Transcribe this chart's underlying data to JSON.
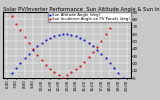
{
  "title": "Solar PV/Inverter Performance  Sun Altitude Angle & Sun Incidence Angle on PV Panels",
  "legend_labels": [
    "Sun Altitude Angle (deg)",
    "Sun Incidence Angle on PV Panels (deg)"
  ],
  "legend_colors": [
    "#0000cc",
    "#cc0000"
  ],
  "bg_color": "#c8c8c8",
  "plot_bg": "#c8c8c8",
  "grid_color": "#ffffff",
  "ylim": [
    0,
    90
  ],
  "yticks": [
    0,
    10,
    20,
    30,
    40,
    50,
    60,
    70,
    80,
    90
  ],
  "xlim_start": 5.5,
  "xlim_end": 20.5,
  "solar_noon": 12.5,
  "day_start": 6.0,
  "day_end": 19.5,
  "max_altitude": 60,
  "panel_tilt_deg": 30,
  "title_fontsize": 3.8,
  "tick_fontsize": 2.8,
  "legend_fontsize": 2.8,
  "marker_size": 1.0,
  "time_step": 0.5
}
